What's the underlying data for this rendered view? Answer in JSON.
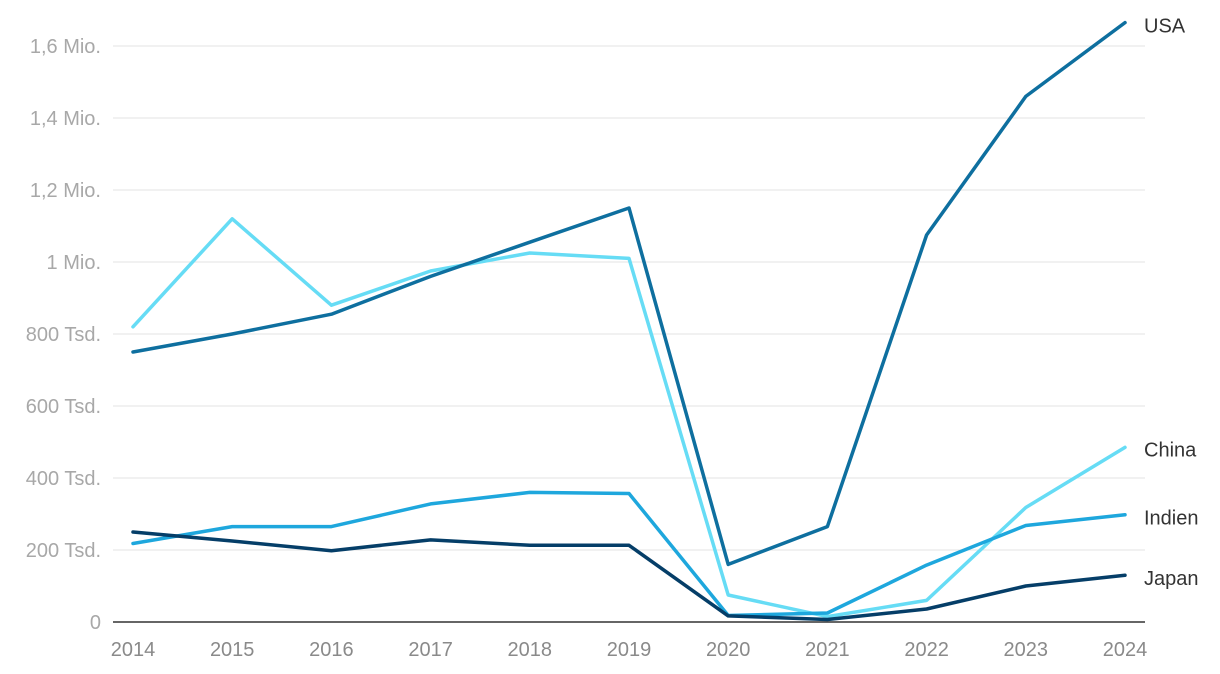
{
  "chart_data": {
    "type": "line",
    "title": "",
    "xlabel": "",
    "ylabel": "",
    "x": [
      "2014",
      "2015",
      "2016",
      "2017",
      "2018",
      "2019",
      "2020",
      "2021",
      "2022",
      "2023",
      "2024"
    ],
    "ylim": [
      0,
      1600000
    ],
    "y_ticks": [
      {
        "value": 0,
        "label": "0"
      },
      {
        "value": 200000,
        "label": "200 Tsd."
      },
      {
        "value": 400000,
        "label": "400 Tsd."
      },
      {
        "value": 600000,
        "label": "600 Tsd."
      },
      {
        "value": 800000,
        "label": "800 Tsd."
      },
      {
        "value": 1000000,
        "label": "1 Mio."
      },
      {
        "value": 1200000,
        "label": "1,2 Mio."
      },
      {
        "value": 1400000,
        "label": "1,4 Mio."
      },
      {
        "value": 1600000,
        "label": "1,6 Mio."
      }
    ],
    "grid": true,
    "legend": "direct labels at line ends (right)",
    "series": [
      {
        "name": "USA",
        "color": "#0e6f9f",
        "values": [
          750000,
          800000,
          855000,
          960000,
          1055000,
          1150000,
          160000,
          265000,
          1075000,
          1460000,
          1665000
        ]
      },
      {
        "name": "China",
        "color": "#66dcf5",
        "values": [
          820000,
          1120000,
          880000,
          975000,
          1025000,
          1010000,
          75000,
          15000,
          60000,
          318000,
          485000
        ]
      },
      {
        "name": "Indien",
        "color": "#1ea7dd",
        "values": [
          218000,
          265000,
          265000,
          328000,
          360000,
          357000,
          18000,
          25000,
          158000,
          268000,
          298000
        ]
      },
      {
        "name": "Japan",
        "color": "#053e68",
        "values": [
          250000,
          225000,
          198000,
          228000,
          213000,
          213000,
          17000,
          7000,
          36000,
          100000,
          130000
        ]
      }
    ]
  }
}
